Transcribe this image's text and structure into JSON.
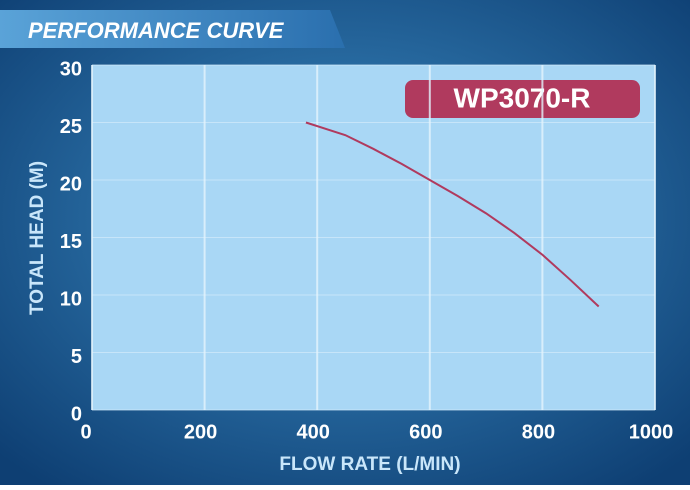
{
  "chart_data": {
    "type": "line",
    "title": "PERFORMANCE CURVE",
    "x_label": "FLOW RATE (L/MIN)",
    "y_label": "TOTAL HEAD (M)",
    "series": [
      {
        "name": "WP3070-R",
        "color": "#b03a5e",
        "x": [
          380,
          450,
          500,
          550,
          600,
          650,
          700,
          750,
          800,
          850,
          900
        ],
        "values": [
          25,
          23.9,
          22.7,
          21.4,
          20,
          18.6,
          17.1,
          15.4,
          13.5,
          11.3,
          9
        ]
      }
    ],
    "xlim": [
      0,
      1000
    ],
    "xticks": [
      0,
      200,
      400,
      600,
      800,
      1000
    ],
    "ylim": [
      0,
      30
    ],
    "yticks": [
      0,
      5,
      10,
      15,
      20,
      25,
      30
    ],
    "grid": true
  }
}
